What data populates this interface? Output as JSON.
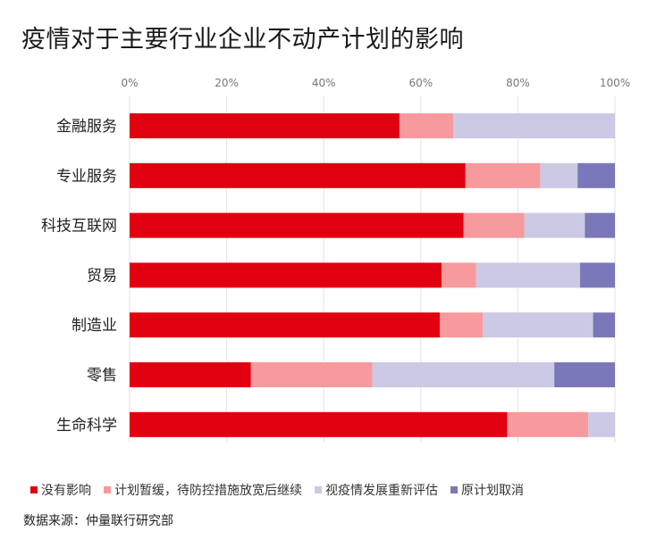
{
  "title": "疫情对于主要行业企业不动产计划的影响",
  "source": "数据来源：仲量联行研究部",
  "chart_data": {
    "type": "bar",
    "orientation": "horizontal",
    "stacked": true,
    "percent": true,
    "categories": [
      "金融服务",
      "专业服务",
      "科技互联网",
      "贸易",
      "制造业",
      "零售",
      "生命科学"
    ],
    "series": [
      {
        "name": "没有影响",
        "color": "#e0000f",
        "values": [
          55.6,
          69.2,
          68.8,
          64.3,
          63.9,
          25.0,
          77.8
        ]
      },
      {
        "name": "计划暂缓，待防控措施放宽后继续",
        "color": "#f79a9d",
        "values": [
          11.1,
          15.4,
          12.5,
          7.1,
          8.9,
          25.0,
          16.7
        ]
      },
      {
        "name": "视疫情发展重新评估",
        "color": "#cbc9e3",
        "values": [
          33.3,
          7.7,
          12.5,
          21.4,
          22.7,
          37.5,
          5.5
        ]
      },
      {
        "name": "原计划取消",
        "color": "#7b78b9",
        "values": [
          0,
          7.7,
          6.2,
          7.2,
          4.5,
          12.5,
          0
        ]
      }
    ],
    "xaxis": {
      "ticks": [
        "0%",
        "20%",
        "40%",
        "60%",
        "80%",
        "100%"
      ],
      "range": [
        0,
        100
      ]
    },
    "grid": true,
    "legend_position": "bottom"
  }
}
